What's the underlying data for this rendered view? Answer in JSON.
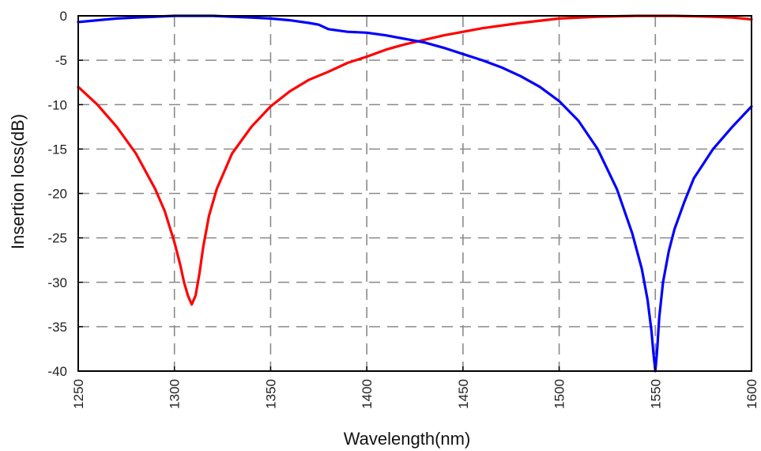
{
  "chart_data": {
    "type": "line",
    "title": "",
    "xlabel": "Wavelength(nm)",
    "ylabel": "Insertion loss(dB)",
    "xlim": [
      1250,
      1600
    ],
    "ylim": [
      -40,
      0
    ],
    "xticks": [
      1250,
      1300,
      1350,
      1400,
      1450,
      1500,
      1550,
      1600
    ],
    "yticks": [
      0,
      -5,
      -10,
      -15,
      -20,
      -25,
      -30,
      -35,
      -40
    ],
    "grid": true,
    "grid_style": "dashed",
    "legend": "none",
    "series": [
      {
        "color": "#ff0000",
        "x": [
          1250,
          1260,
          1270,
          1280,
          1290,
          1295,
          1300,
          1303,
          1305,
          1307,
          1309,
          1311,
          1313,
          1315,
          1318,
          1322,
          1326,
          1330,
          1340,
          1350,
          1360,
          1370,
          1380,
          1390,
          1400,
          1410,
          1420,
          1430,
          1440,
          1450,
          1460,
          1480,
          1500,
          1520,
          1540,
          1560,
          1580,
          1590,
          1600
        ],
        "y": [
          -8.0,
          -10.0,
          -12.5,
          -15.5,
          -19.5,
          -22.0,
          -25.5,
          -28.0,
          -30.0,
          -31.5,
          -32.5,
          -31.5,
          -29.0,
          -26.0,
          -22.5,
          -19.5,
          -17.5,
          -15.5,
          -12.5,
          -10.2,
          -8.5,
          -7.2,
          -6.3,
          -5.3,
          -4.6,
          -3.8,
          -3.2,
          -2.7,
          -2.2,
          -1.8,
          -1.4,
          -0.8,
          -0.3,
          -0.1,
          0.0,
          0.0,
          -0.1,
          -0.2,
          -0.4
        ]
      },
      {
        "color": "#0000ff",
        "x": [
          1250,
          1260,
          1270,
          1280,
          1290,
          1300,
          1310,
          1320,
          1330,
          1340,
          1350,
          1360,
          1370,
          1375,
          1380,
          1390,
          1400,
          1410,
          1420,
          1430,
          1440,
          1450,
          1460,
          1470,
          1480,
          1490,
          1500,
          1510,
          1520,
          1530,
          1538,
          1543,
          1546,
          1548,
          1549,
          1550,
          1551,
          1552,
          1554,
          1557,
          1560,
          1565,
          1570,
          1580,
          1590,
          1600
        ],
        "y": [
          -0.7,
          -0.5,
          -0.3,
          -0.2,
          -0.1,
          0.0,
          0.0,
          0.0,
          -0.1,
          -0.2,
          -0.3,
          -0.5,
          -0.8,
          -1.0,
          -1.5,
          -1.8,
          -1.9,
          -2.2,
          -2.6,
          -3.0,
          -3.6,
          -4.3,
          -5.0,
          -5.8,
          -6.8,
          -8.0,
          -9.6,
          -11.8,
          -15.0,
          -19.5,
          -24.5,
          -28.5,
          -32.0,
          -35.5,
          -38.0,
          -40.0,
          -37.5,
          -34.0,
          -30.0,
          -26.5,
          -24.0,
          -21.0,
          -18.3,
          -15.0,
          -12.5,
          -10.2
        ]
      }
    ]
  }
}
